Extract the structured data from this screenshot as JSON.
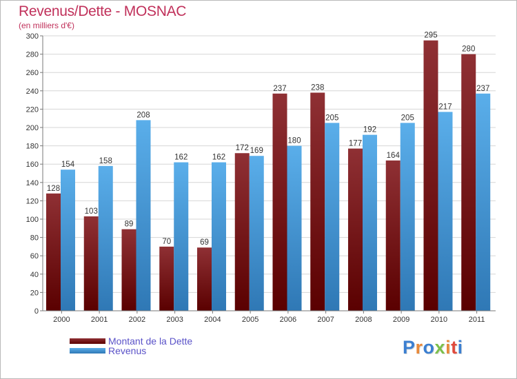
{
  "title": "Revenus/Dette - MOSNAC",
  "subtitle": "(en milliers d'€)",
  "logo": {
    "text": "Proxiti",
    "letter_colors": [
      "#3b7fd1",
      "#e8893a",
      "#3b7fd1",
      "#7cc04a",
      "#e8893a",
      "#e04a3c",
      "#3b7fd1"
    ]
  },
  "colors": {
    "dette_light": "#8f3034",
    "dette_dark": "#5a0000",
    "revenus_light": "#5aaeea",
    "revenus_dark": "#2f78b5",
    "grid": "#d6d6d6",
    "axis": "#777777"
  },
  "chart_data": {
    "type": "bar",
    "title": "Revenus/Dette - MOSNAC",
    "ylabel": "(en milliers d'€)",
    "xlabel": "",
    "categories": [
      "2000",
      "2001",
      "2002",
      "2003",
      "2004",
      "2005",
      "2006",
      "2007",
      "2008",
      "2009",
      "2010",
      "2011"
    ],
    "series": [
      {
        "name": "Montant de la Dette",
        "values": [
          128,
          103,
          89,
          70,
          69,
          172,
          237,
          238,
          177,
          164,
          295,
          280
        ]
      },
      {
        "name": "Revenus",
        "values": [
          154,
          158,
          208,
          162,
          162,
          169,
          180,
          205,
          192,
          205,
          217,
          237
        ]
      }
    ],
    "ylim": [
      0,
      300
    ],
    "yticks": [
      0,
      20,
      40,
      60,
      80,
      100,
      120,
      140,
      160,
      180,
      200,
      220,
      240,
      260,
      280,
      300
    ],
    "grid": true,
    "legend_position": "bottom-left"
  }
}
